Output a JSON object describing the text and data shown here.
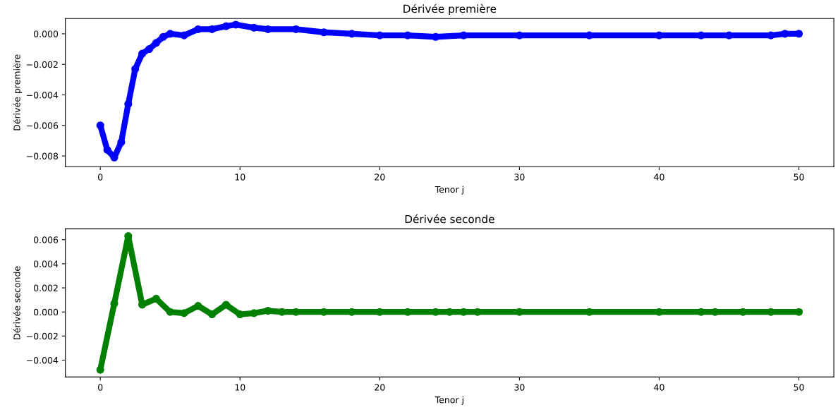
{
  "chart_data": [
    {
      "type": "line",
      "title": "Dérivée première",
      "xlabel": "Tenor j",
      "ylabel": "Dérivée première",
      "marker": "circle",
      "line_style": "solid",
      "grid": false,
      "legend": false,
      "xlim": [
        -2.5,
        52.5
      ],
      "xticks": [
        0,
        10,
        20,
        30,
        40,
        50
      ],
      "ylim": [
        -0.0087,
        0.001
      ],
      "yticks": [
        {
          "value": -0.008,
          "label": "−0.008"
        },
        {
          "value": -0.006,
          "label": "−0.006"
        },
        {
          "value": -0.004,
          "label": "−0.004"
        },
        {
          "value": -0.002,
          "label": "−0.002"
        },
        {
          "value": 0,
          "label": "0.000"
        }
      ],
      "series": [
        {
          "color": "#0000ff",
          "x": [
            0,
            0.5,
            1,
            1.5,
            2,
            2.5,
            3,
            3.5,
            4,
            4.5,
            5,
            6,
            7,
            8,
            9,
            9.7,
            11,
            12,
            14,
            16,
            18,
            20,
            22,
            24,
            26,
            30,
            35,
            40,
            43,
            45,
            48,
            49,
            50
          ],
          "values": [
            -0.006,
            -0.0076,
            -0.0081,
            -0.0071,
            -0.0046,
            -0.0023,
            -0.0013,
            -0.001,
            -0.0006,
            -0.0002,
            0.0,
            -0.0001,
            0.0003,
            0.0003,
            0.0005,
            0.0006,
            0.0004,
            0.0003,
            0.0003,
            0.0001,
            0.0,
            -0.0001,
            -0.0001,
            -0.0002,
            -0.0001,
            -0.0001,
            -0.0001,
            -0.0001,
            -0.0001,
            -0.0001,
            -0.0001,
            0.0,
            0.0
          ]
        }
      ]
    },
    {
      "type": "line",
      "title": "Dérivée seconde",
      "xlabel": "Tenor j",
      "ylabel": "Dérivée seconde",
      "marker": "circle",
      "line_style": "solid",
      "grid": false,
      "legend": false,
      "xlim": [
        -2.5,
        52.5
      ],
      "xticks": [
        0,
        10,
        20,
        30,
        40,
        50
      ],
      "ylim": [
        -0.0054,
        0.0069
      ],
      "yticks": [
        {
          "value": -0.004,
          "label": "−0.004"
        },
        {
          "value": -0.002,
          "label": "−0.002"
        },
        {
          "value": 0,
          "label": "0.000"
        },
        {
          "value": 0.002,
          "label": "0.002"
        },
        {
          "value": 0.004,
          "label": "0.004"
        },
        {
          "value": 0.006,
          "label": "0.006"
        }
      ],
      "series": [
        {
          "color": "#008000",
          "x": [
            0,
            1,
            2,
            3,
            4,
            5,
            6,
            7,
            8,
            9,
            10,
            11,
            12,
            13,
            14,
            16,
            18,
            20,
            22,
            24,
            25,
            26,
            27,
            30,
            35,
            40,
            43,
            44,
            46,
            48,
            50
          ],
          "values": [
            -0.0048,
            0.0007,
            0.0063,
            0.0006,
            0.0011,
            0.0,
            -0.0001,
            0.0005,
            -0.0002,
            0.0006,
            -0.0002,
            -0.0001,
            0.0001,
            0.0,
            0.0,
            0.0,
            0.0,
            0.0,
            0.0,
            0.0,
            0.0,
            0.0,
            0.0,
            0.0,
            0.0,
            0.0,
            0.0,
            0.0,
            0.0,
            0.0,
            0.0
          ]
        }
      ]
    }
  ]
}
